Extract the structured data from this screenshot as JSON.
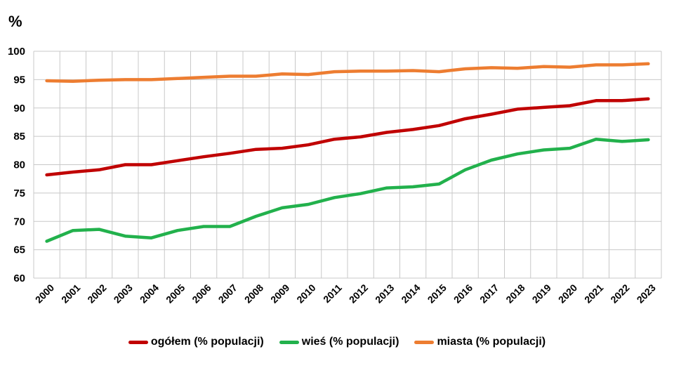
{
  "chart_data": {
    "type": "line",
    "ylabel": "%",
    "ylim": [
      60,
      100
    ],
    "yticks": [
      60,
      65,
      70,
      75,
      80,
      85,
      90,
      95,
      100
    ],
    "grid": true,
    "legend_position": "bottom",
    "x": [
      "2000",
      "2001",
      "2002",
      "2003",
      "2004",
      "2005",
      "2006",
      "2007",
      "2008",
      "2009",
      "2010",
      "2011",
      "2012",
      "2013",
      "2014",
      "2015",
      "2016",
      "2017",
      "2018",
      "2019",
      "2020",
      "2021",
      "2022",
      "2023"
    ],
    "series": [
      {
        "name": "ogółem (% populacji)",
        "color": "#c00000",
        "values": [
          78.2,
          78.7,
          79.1,
          80.0,
          80.0,
          80.7,
          81.4,
          82.0,
          82.7,
          82.9,
          83.5,
          84.5,
          84.9,
          85.7,
          86.2,
          86.9,
          88.1,
          88.9,
          89.8,
          90.1,
          90.4,
          91.3,
          91.3,
          91.6
        ]
      },
      {
        "name": "wieś (% populacji)",
        "color": "#22b14c",
        "values": [
          66.5,
          68.4,
          68.6,
          67.4,
          67.1,
          68.4,
          69.1,
          69.1,
          70.9,
          72.4,
          73.0,
          74.2,
          74.9,
          75.9,
          76.1,
          76.6,
          79.1,
          80.8,
          81.9,
          82.6,
          82.9,
          84.5,
          84.1,
          84.4
        ]
      },
      {
        "name": "miasta (% populacji)",
        "color": "#ed7d31",
        "values": [
          94.8,
          94.7,
          94.9,
          95.0,
          95.0,
          95.2,
          95.4,
          95.6,
          95.6,
          96.0,
          95.9,
          96.4,
          96.5,
          96.5,
          96.6,
          96.4,
          96.9,
          97.1,
          97.0,
          97.3,
          97.2,
          97.6,
          97.6,
          97.8
        ]
      }
    ]
  }
}
